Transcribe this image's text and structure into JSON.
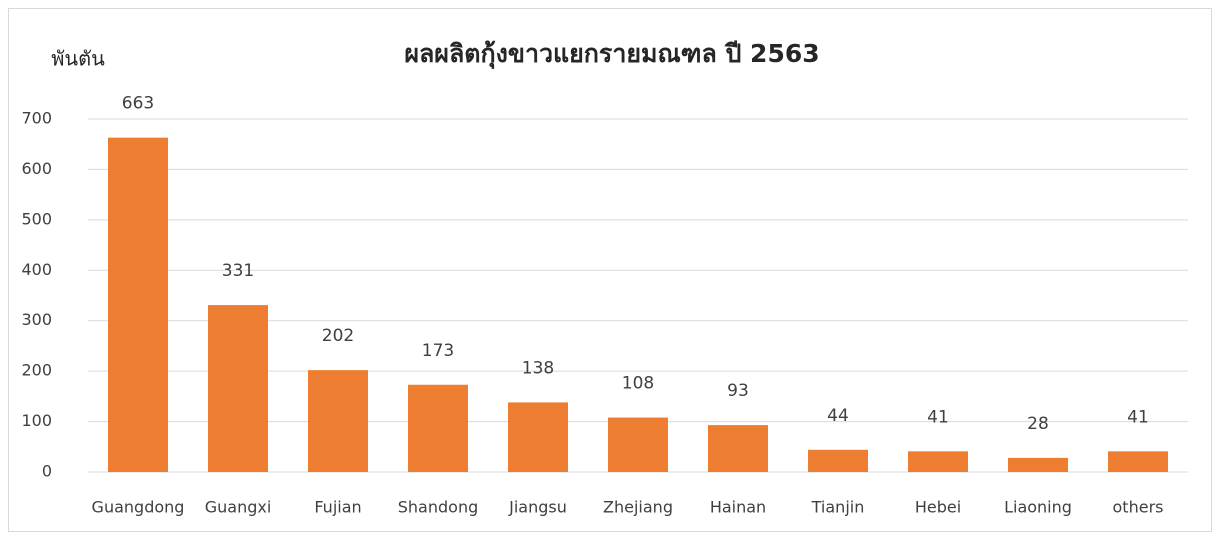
{
  "chart_data": {
    "type": "bar",
    "title": "ผลผลิตกุ้งขาวแยกรายมณฑล ปี 2563",
    "y_label": "พันตัน",
    "categories": [
      "Guangdong",
      "Guangxi",
      "Fujian",
      "Shandong",
      "Jiangsu",
      "Zhejiang",
      "Hainan",
      "Tianjin",
      "Hebei",
      "Liaoning",
      "others"
    ],
    "values": [
      663,
      331,
      202,
      173,
      138,
      108,
      93,
      44,
      41,
      28,
      41
    ],
    "color": "#ed7d31",
    "ylim": [
      0,
      700
    ],
    "yticks": [
      0,
      100,
      200,
      300,
      400,
      500,
      600,
      700
    ],
    "grid": true
  }
}
